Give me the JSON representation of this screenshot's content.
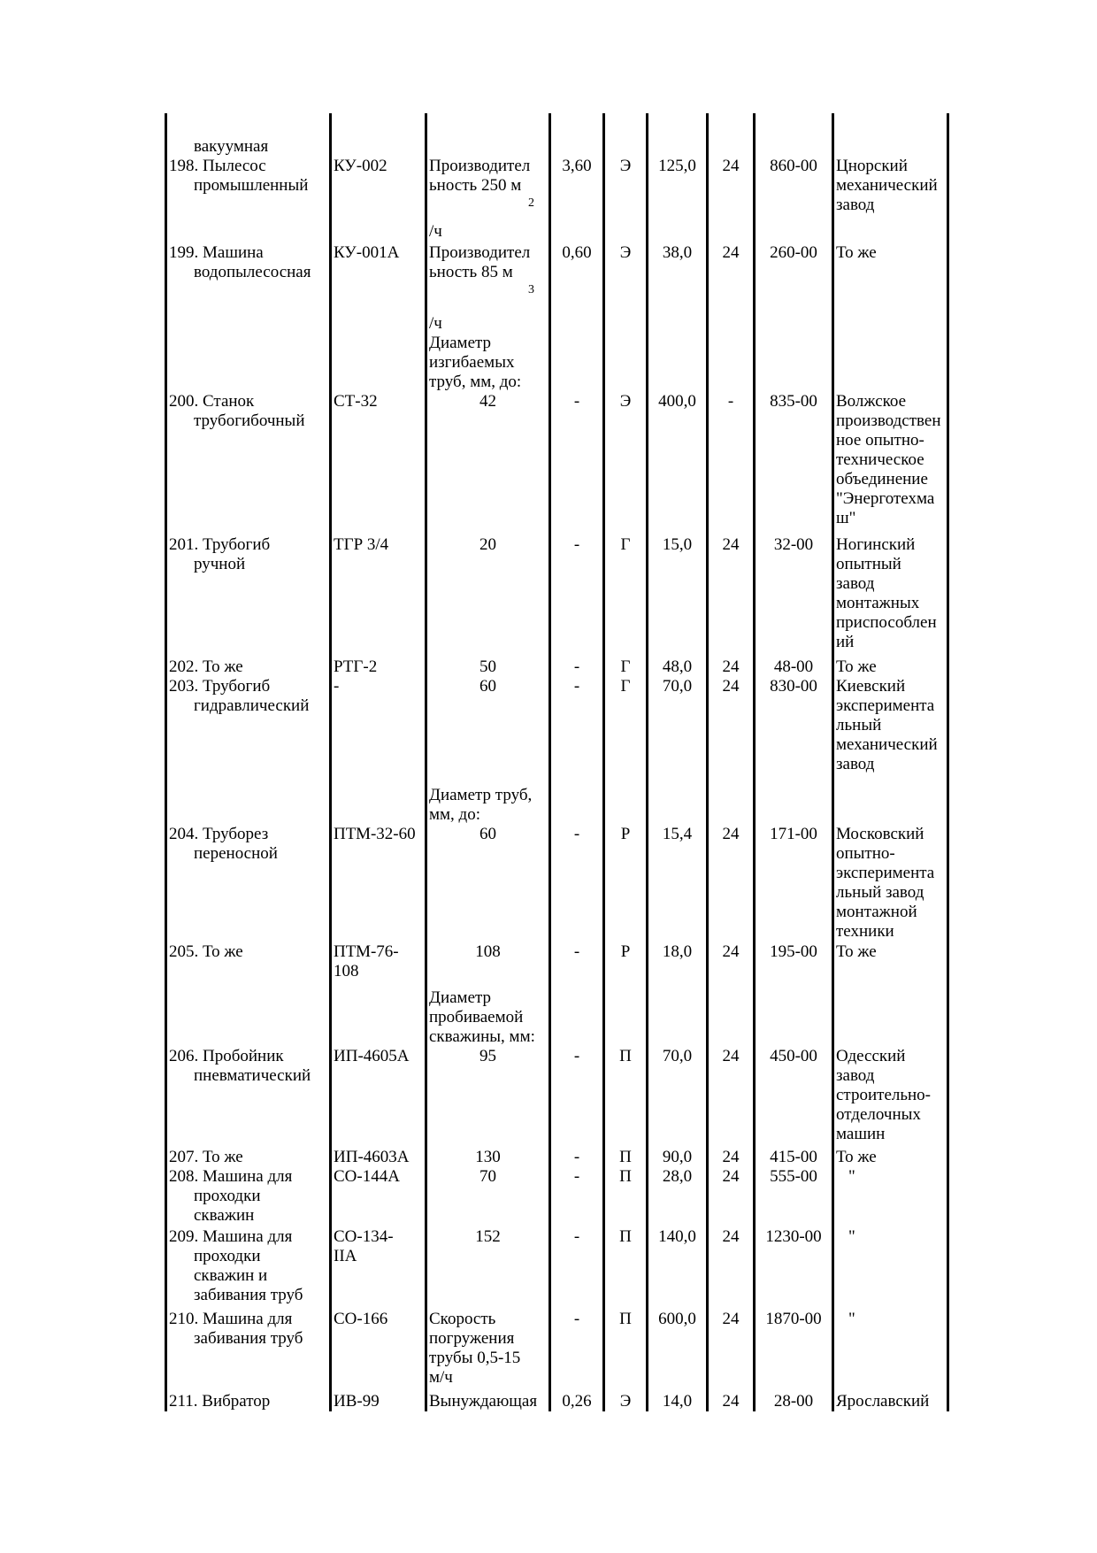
{
  "page": {
    "background": "#ffffff",
    "text_color": "#000000",
    "line_color": "#000000"
  },
  "table": {
    "rows": [
      {
        "name": "вакуумная",
        "cont": true,
        "model": "",
        "char_top": [],
        "char_bottom": [],
        "norm": "",
        "drive": "",
        "mass": "",
        "term": "",
        "price": "",
        "maker": ""
      },
      {
        "name": "198. Пылесос\nпромышленный",
        "model": "КУ-002",
        "char_top": [
          {
            "k": "text",
            "v": "Производител\nьность 250 м"
          },
          {
            "k": "sup",
            "v": "2"
          },
          {
            "k": "gap",
            "v": 12
          },
          {
            "k": "text",
            "v": "/ч"
          }
        ],
        "char_bottom": [],
        "norm": "3,60",
        "drive": "Э",
        "mass": "125,0",
        "term": "24",
        "price": "860-00",
        "maker": "Цнорский\nмеханический\nзавод"
      },
      {
        "name": "199. Машина\nводопылесосная",
        "model": "КУ-001А",
        "char_top": [
          {
            "k": "text",
            "v": "Производител\nьность 85 м"
          },
          {
            "k": "sup",
            "v": "3"
          },
          {
            "k": "gap",
            "v": 18
          },
          {
            "k": "text",
            "v": "/ч"
          },
          {
            "k": "text",
            "v": "Диаметр\nизгибаемых\nтруб, мм, до:"
          }
        ],
        "char_bottom": [],
        "norm": "0,60",
        "drive": "Э",
        "mass": "38,0",
        "term": "24",
        "price": "260-00",
        "maker": "То же"
      },
      {
        "name": "200. Станок\nтрубогибочный",
        "model": "СТ-32",
        "char_top": [
          {
            "k": "num",
            "v": "42"
          }
        ],
        "char_bottom": [],
        "norm": "-",
        "drive": "Э",
        "mass": "400,0",
        "term": "-",
        "price": "835-00",
        "maker": "Волжское\nпроизводствен\nное опытно-\nтехническое\nобъединение\n\"Энерготехма\nш\""
      },
      {
        "name": "201. Трубогиб\nручной",
        "model": "ТГР 3/4",
        "char_top": [
          {
            "k": "num",
            "v": "20"
          }
        ],
        "char_bottom": [],
        "norm": "-",
        "drive": "Г",
        "mass": "15,0",
        "term": "24",
        "price": "32-00",
        "maker": "Ногинский\nопытный\nзавод\nмонтажных\nприспособлен\nий"
      },
      {
        "name": "202. То же",
        "model": "РТГ-2",
        "char_top": [
          {
            "k": "num",
            "v": "50"
          }
        ],
        "char_bottom": [],
        "norm": "-",
        "drive": "Г",
        "mass": "48,0",
        "term": "24",
        "price": "48-00",
        "maker": "То же"
      },
      {
        "name": "203. Трубогиб\nгидравлический",
        "model": "-",
        "char_top": [
          {
            "k": "num",
            "v": "60"
          }
        ],
        "char_bottom": [
          {
            "k": "text",
            "v": "Диаметр труб,\nмм, до:"
          }
        ],
        "norm": "-",
        "drive": "Г",
        "mass": "70,0",
        "term": "24",
        "price": "830-00",
        "maker": "Киевский\nэксперимента\nльный\nмеханический\nзавод"
      },
      {
        "name": "204. Труборез\nпереносной",
        "model": "ПТМ-32-60",
        "char_top": [
          {
            "k": "num",
            "v": "60"
          }
        ],
        "char_bottom": [],
        "norm": "-",
        "drive": "Р",
        "mass": "15,4",
        "term": "24",
        "price": "171-00",
        "maker": "Московский\nопытно-\nэксперимента\nльный завод\nмонтажной\nтехники"
      },
      {
        "name": "205. То же",
        "model": "ПТМ-76-\n108",
        "char_top": [
          {
            "k": "num",
            "v": "108"
          }
        ],
        "char_bottom": [
          {
            "k": "text",
            "v": "Диаметр\nпробиваемой\nскважины, мм:"
          }
        ],
        "norm": "-",
        "drive": "Р",
        "mass": "18,0",
        "term": "24",
        "price": "195-00",
        "maker": "То же"
      },
      {
        "name": "206. Пробойник\nпневматический",
        "model": "ИП-4605А",
        "char_top": [
          {
            "k": "num",
            "v": "95"
          }
        ],
        "char_bottom": [],
        "norm": "-",
        "drive": "П",
        "mass": "70,0",
        "term": "24",
        "price": "450-00",
        "maker": "Одесский\nзавод\nстроительно-\nотделочных\nмашин"
      },
      {
        "name": "207. То же",
        "model": "ИП-4603А",
        "char_top": [
          {
            "k": "num",
            "v": "130"
          }
        ],
        "char_bottom": [],
        "norm": "-",
        "drive": "П",
        "mass": "90,0",
        "term": "24",
        "price": "415-00",
        "maker": "То же"
      },
      {
        "name": "208. Машина для\nпроходки\nскважин",
        "model": "СО-144А",
        "char_top": [
          {
            "k": "num",
            "v": "70"
          }
        ],
        "char_bottom": [],
        "norm": "-",
        "drive": "П",
        "mass": "28,0",
        "term": "24",
        "price": "555-00",
        "maker": "\""
      },
      {
        "name": "209. Машина для\nпроходки\nскважин и\nзабивания труб",
        "model": "СО-134-\nIIА",
        "char_top": [
          {
            "k": "num",
            "v": "152"
          }
        ],
        "char_bottom": [],
        "norm": "-",
        "drive": "П",
        "mass": "140,0",
        "term": "24",
        "price": "1230-00",
        "maker": "\""
      },
      {
        "name": "210. Машина для\nзабивания труб",
        "model": "СО-166",
        "char_top": [
          {
            "k": "text",
            "v": "Скорость\nпогружения\nтрубы 0,5-15\nм/ч"
          }
        ],
        "char_bottom": [],
        "norm": "-",
        "drive": "П",
        "mass": "600,0",
        "term": "24",
        "price": "1870-00",
        "maker": "\""
      },
      {
        "name": "211. Вибратор",
        "model": "ИВ-99",
        "char_top": [
          {
            "k": "text",
            "v": "Вынуждающая"
          }
        ],
        "char_bottom": [],
        "norm": "0,26",
        "drive": "Э",
        "mass": "14,0",
        "term": "24",
        "price": "28-00",
        "maker": "Ярославский"
      }
    ]
  }
}
